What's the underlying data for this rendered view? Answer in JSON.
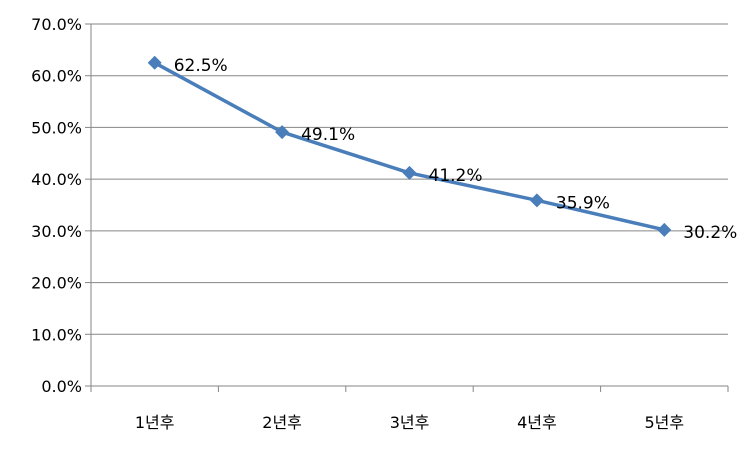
{
  "chart_data": {
    "type": "line",
    "title": "",
    "xlabel": "",
    "ylabel": "",
    "categories": [
      "1년후",
      "2년후",
      "3년후",
      "4년후",
      "5년후"
    ],
    "series": [
      {
        "values": [
          62.5,
          49.1,
          41.2,
          35.9,
          30.2
        ],
        "labels": [
          "62.5%",
          "49.1%",
          "41.2%",
          "35.9%",
          "30.2%"
        ],
        "color": "#4a7ebb",
        "marker": "diamond"
      }
    ],
    "yticks": [
      "0.0%",
      "10.0%",
      "20.0%",
      "30.0%",
      "40.0%",
      "50.0%",
      "60.0%",
      "70.0%"
    ],
    "ylim": [
      0,
      70
    ],
    "grid": true,
    "gridline_color": "#868686",
    "legend": "none"
  }
}
